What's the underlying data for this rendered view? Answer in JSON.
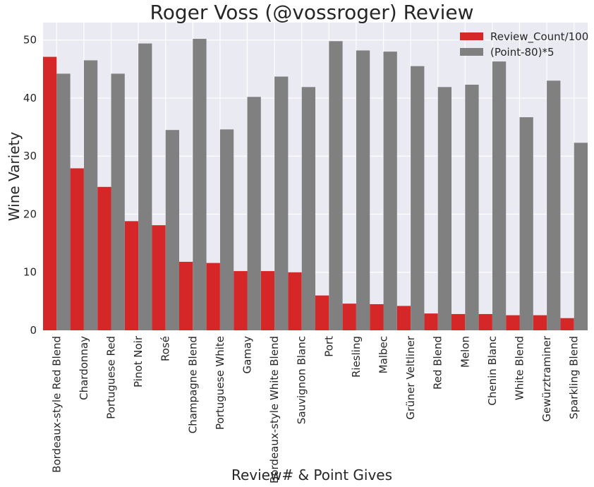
{
  "chart_data": {
    "type": "bar",
    "title": "Roger Voss (@vossroger) Review",
    "xlabel": "Review# & Point Gives",
    "ylabel": "Wine Variety",
    "ylim": [
      0,
      53
    ],
    "yticks": [
      0,
      10,
      20,
      30,
      40,
      50
    ],
    "grid": true,
    "legend_position": "top-right",
    "categories": [
      "Bordeaux-style Red Blend",
      "Chardonnay",
      "Portuguese Red",
      "Pinot Noir",
      "Rosé",
      "Champagne Blend",
      "Portuguese White",
      "Gamay",
      "Bordeaux-style White Blend",
      "Sauvignon Blanc",
      "Port",
      "Riesling",
      "Malbec",
      "Grüner Veltliner",
      "Red Blend",
      "Melon",
      "Chenin Blanc",
      "White Blend",
      "Gewürztraminer",
      "Sparkling Blend"
    ],
    "series": [
      {
        "name": "Review_Count/100",
        "color": "#d62728",
        "values": [
          47.1,
          27.9,
          24.7,
          18.8,
          18.1,
          11.8,
          11.6,
          10.2,
          10.2,
          10.0,
          6.0,
          4.6,
          4.5,
          4.2,
          2.9,
          2.8,
          2.8,
          2.6,
          2.6,
          2.1
        ]
      },
      {
        "name": "(Point-80)*5",
        "color": "#808080",
        "values": [
          44.2,
          46.5,
          44.2,
          49.4,
          34.5,
          50.2,
          34.6,
          40.2,
          43.7,
          41.9,
          49.8,
          48.2,
          48.0,
          45.5,
          41.9,
          42.3,
          46.3,
          36.7,
          43.0,
          32.3
        ]
      }
    ],
    "colors": {
      "background": "#eaeaf2",
      "grid": "#ffffff"
    }
  }
}
